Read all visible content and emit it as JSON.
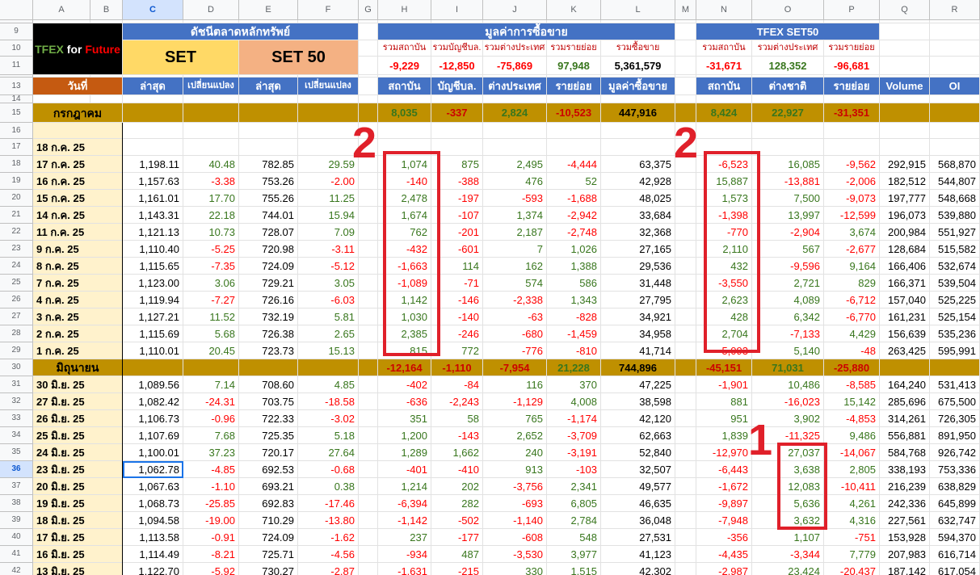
{
  "column_headers": [
    "A",
    "B",
    "C",
    "D",
    "E",
    "F",
    "G",
    "H",
    "I",
    "J",
    "K",
    "L",
    "M",
    "N",
    "O",
    "P",
    "Q",
    "R"
  ],
  "selected_cell": "C36",
  "logo": {
    "text1": "TFEX",
    "text2": " for ",
    "text3": "Future"
  },
  "headers": {
    "set_index": "ดัชนีตลาดหลักทรัพย์",
    "trading_value": "มูลค่าการซื้อขาย",
    "tfex_set50": "TFEX SET50",
    "set": "SET",
    "set50": "SET 50",
    "h10": "รวมสถาบัน",
    "i10": "รวมบัญชีบล.",
    "j10": "รวมต่างประเทศ",
    "k10": "รวมรายย่อย",
    "l10": "รวมซื้อขาย",
    "n10": "รวมสถาบัน",
    "o10": "รวมต่างประเทศ",
    "p10": "รวมรายย่อย",
    "h11": "-9,229",
    "i11": "-12,850",
    "j11": "-75,869",
    "k11": "97,948",
    "l11": "5,361,579",
    "n11": "-31,671",
    "o11": "128,352",
    "p11": "-96,681",
    "date": "วันที่",
    "c13": "ล่าสุด",
    "d13": "เปลี่ยนแปลง",
    "e13": "ล่าสุด",
    "f13": "เปลี่ยนแปลง",
    "h13": "สถาบัน",
    "i13": "บัญชีบล.",
    "j13": "ต่างประเทศ",
    "k13": "รายย่อย",
    "l13": "มูลค่าซื้อขาย",
    "n13": "สถาบัน",
    "o13": "ต่างชาติ",
    "p13": "รายย่อย",
    "q13": "Volume",
    "r13": "OI"
  },
  "month_july": {
    "label": "กรกฎาคม",
    "h": "8,035",
    "i": "-337",
    "j": "2,824",
    "k": "-10,523",
    "l": "447,916",
    "n": "8,424",
    "o": "22,927",
    "p": "-31,351"
  },
  "month_june": {
    "label": "มิถุนายน",
    "h": "-12,164",
    "i": "-1,110",
    "j": "-7,954",
    "k": "21,228",
    "l": "744,896",
    "n": "-45,151",
    "o": "71,031",
    "p": "-25,880"
  },
  "row17_date": "18 ก.ค. 25",
  "rows": [
    {
      "n": "18",
      "date": "17 ก.ค. 25",
      "c": "1,198.11",
      "d": "40.48",
      "e": "782.85",
      "f": "29.59",
      "h": "1,074",
      "i": "875",
      "j": "2,495",
      "k": "-4,444",
      "l": "63,375",
      "N": "-6,523",
      "o": "16,085",
      "p": "-9,562",
      "q": "292,915",
      "r": "568,870"
    },
    {
      "n": "19",
      "date": "16 ก.ค. 25",
      "c": "1,157.63",
      "d": "-3.38",
      "e": "753.26",
      "f": "-2.00",
      "h": "-140",
      "i": "-388",
      "j": "476",
      "k": "52",
      "l": "42,928",
      "N": "15,887",
      "o": "-13,881",
      "p": "-2,006",
      "q": "182,512",
      "r": "544,807"
    },
    {
      "n": "20",
      "date": "15 ก.ค. 25",
      "c": "1,161.01",
      "d": "17.70",
      "e": "755.26",
      "f": "11.25",
      "h": "2,478",
      "i": "-197",
      "j": "-593",
      "k": "-1,688",
      "l": "48,025",
      "N": "1,573",
      "o": "7,500",
      "p": "-9,073",
      "q": "197,777",
      "r": "548,668"
    },
    {
      "n": "21",
      "date": "14 ก.ค. 25",
      "c": "1,143.31",
      "d": "22.18",
      "e": "744.01",
      "f": "15.94",
      "h": "1,674",
      "i": "-107",
      "j": "1,374",
      "k": "-2,942",
      "l": "33,684",
      "N": "-1,398",
      "o": "13,997",
      "p": "-12,599",
      "q": "196,073",
      "r": "539,880"
    },
    {
      "n": "22",
      "date": "11 ก.ค. 25",
      "c": "1,121.13",
      "d": "10.73",
      "e": "728.07",
      "f": "7.09",
      "h": "762",
      "i": "-201",
      "j": "2,187",
      "k": "-2,748",
      "l": "32,368",
      "N": "-770",
      "o": "-2,904",
      "p": "3,674",
      "q": "200,984",
      "r": "551,927"
    },
    {
      "n": "23",
      "date": "9 ก.ค. 25",
      "c": "1,110.40",
      "d": "-5.25",
      "e": "720.98",
      "f": "-3.11",
      "h": "-432",
      "i": "-601",
      "j": "7",
      "k": "1,026",
      "l": "27,165",
      "N": "2,110",
      "o": "567",
      "p": "-2,677",
      "q": "128,684",
      "r": "515,582"
    },
    {
      "n": "24",
      "date": "8 ก.ค. 25",
      "c": "1,115.65",
      "d": "-7.35",
      "e": "724.09",
      "f": "-5.12",
      "h": "-1,663",
      "i": "114",
      "j": "162",
      "k": "1,388",
      "l": "29,536",
      "N": "432",
      "o": "-9,596",
      "p": "9,164",
      "q": "166,406",
      "r": "532,674"
    },
    {
      "n": "25",
      "date": "7 ก.ค. 25",
      "c": "1,123.00",
      "d": "3.06",
      "e": "729.21",
      "f": "3.05",
      "h": "-1,089",
      "i": "-71",
      "j": "574",
      "k": "586",
      "l": "31,448",
      "N": "-3,550",
      "o": "2,721",
      "p": "829",
      "q": "166,371",
      "r": "539,504"
    },
    {
      "n": "26",
      "date": "4 ก.ค. 25",
      "c": "1,119.94",
      "d": "-7.27",
      "e": "726.16",
      "f": "-6.03",
      "h": "1,142",
      "i": "-146",
      "j": "-2,338",
      "k": "1,343",
      "l": "27,795",
      "N": "2,623",
      "o": "4,089",
      "p": "-6,712",
      "q": "157,040",
      "r": "525,225"
    },
    {
      "n": "27",
      "date": "3 ก.ค. 25",
      "c": "1,127.21",
      "d": "11.52",
      "e": "732.19",
      "f": "5.81",
      "h": "1,030",
      "i": "-140",
      "j": "-63",
      "k": "-828",
      "l": "34,921",
      "N": "428",
      "o": "6,342",
      "p": "-6,770",
      "q": "161,231",
      "r": "525,154"
    },
    {
      "n": "28",
      "date": "2 ก.ค. 25",
      "c": "1,115.69",
      "d": "5.68",
      "e": "726.38",
      "f": "2.65",
      "h": "2,385",
      "i": "-246",
      "j": "-680",
      "k": "-1,459",
      "l": "34,958",
      "N": "2,704",
      "o": "-7,133",
      "p": "4,429",
      "q": "156,639",
      "r": "535,236"
    },
    {
      "n": "29",
      "date": "1 ก.ค. 25",
      "c": "1,110.01",
      "d": "20.45",
      "e": "723.73",
      "f": "15.13",
      "h": "815",
      "i": "772",
      "j": "-776",
      "k": "-810",
      "l": "41,714",
      "N": "-5,093",
      "o": "5,140",
      "p": "-48",
      "q": "263,425",
      "r": "595,991"
    }
  ],
  "rows2": [
    {
      "n": "31",
      "date": "30 มิ.ย. 25",
      "c": "1,089.56",
      "d": "7.14",
      "e": "708.60",
      "f": "4.85",
      "h": "-402",
      "i": "-84",
      "j": "116",
      "k": "370",
      "l": "47,225",
      "N": "-1,901",
      "o": "10,486",
      "p": "-8,585",
      "q": "164,240",
      "r": "531,413"
    },
    {
      "n": "32",
      "date": "27 มิ.ย. 25",
      "c": "1,082.42",
      "d": "-24.31",
      "e": "703.75",
      "f": "-18.58",
      "h": "-636",
      "i": "-2,243",
      "j": "-1,129",
      "k": "4,008",
      "l": "38,598",
      "N": "881",
      "o": "-16,023",
      "p": "15,142",
      "q": "285,696",
      "r": "675,500"
    },
    {
      "n": "33",
      "date": "26 มิ.ย. 25",
      "c": "1,106.73",
      "d": "-0.96",
      "e": "722.33",
      "f": "-3.02",
      "h": "351",
      "i": "58",
      "j": "765",
      "k": "-1,174",
      "l": "42,120",
      "N": "951",
      "o": "3,902",
      "p": "-4,853",
      "q": "314,261",
      "r": "726,305"
    },
    {
      "n": "34",
      "date": "25 มิ.ย. 25",
      "c": "1,107.69",
      "d": "7.68",
      "e": "725.35",
      "f": "5.18",
      "h": "1,200",
      "i": "-143",
      "j": "2,652",
      "k": "-3,709",
      "l": "62,663",
      "N": "1,839",
      "o": "-11,325",
      "p": "9,486",
      "q": "556,881",
      "r": "891,950"
    },
    {
      "n": "35",
      "date": "24 มิ.ย. 25",
      "c": "1,100.01",
      "d": "37.23",
      "e": "720.17",
      "f": "27.64",
      "h": "1,289",
      "i": "1,662",
      "j": "240",
      "k": "-3,191",
      "l": "52,840",
      "N": "-12,970",
      "o": "27,037",
      "p": "-14,067",
      "q": "584,768",
      "r": "926,742"
    },
    {
      "n": "36",
      "date": "23 มิ.ย. 25",
      "c": "1,062.78",
      "d": "-4.85",
      "e": "692.53",
      "f": "-0.68",
      "h": "-401",
      "i": "-410",
      "j": "913",
      "k": "-103",
      "l": "32,507",
      "N": "-6,443",
      "o": "3,638",
      "p": "2,805",
      "q": "338,193",
      "r": "753,336"
    },
    {
      "n": "37",
      "date": "20 มิ.ย. 25",
      "c": "1,067.63",
      "d": "-1.10",
      "e": "693.21",
      "f": "0.38",
      "h": "1,214",
      "i": "202",
      "j": "-3,756",
      "k": "2,341",
      "l": "49,577",
      "N": "-1,672",
      "o": "12,083",
      "p": "-10,411",
      "q": "216,239",
      "r": "638,829"
    },
    {
      "n": "38",
      "date": "19 มิ.ย. 25",
      "c": "1,068.73",
      "d": "-25.85",
      "e": "692.83",
      "f": "-17.46",
      "h": "-6,394",
      "i": "282",
      "j": "-693",
      "k": "6,805",
      "l": "46,635",
      "N": "-9,897",
      "o": "5,636",
      "p": "4,261",
      "q": "242,336",
      "r": "645,899"
    },
    {
      "n": "39",
      "date": "18 มิ.ย. 25",
      "c": "1,094.58",
      "d": "-19.00",
      "e": "710.29",
      "f": "-13.80",
      "h": "-1,142",
      "i": "-502",
      "j": "-1,140",
      "k": "2,784",
      "l": "36,048",
      "N": "-7,948",
      "o": "3,632",
      "p": "4,316",
      "q": "227,561",
      "r": "632,747"
    },
    {
      "n": "40",
      "date": "17 มิ.ย. 25",
      "c": "1,113.58",
      "d": "-0.91",
      "e": "724.09",
      "f": "-1.62",
      "h": "237",
      "i": "-177",
      "j": "-608",
      "k": "548",
      "l": "27,531",
      "N": "-356",
      "o": "1,107",
      "p": "-751",
      "q": "153,928",
      "r": "594,370"
    },
    {
      "n": "41",
      "date": "16 มิ.ย. 25",
      "c": "1,114.49",
      "d": "-8.21",
      "e": "725.71",
      "f": "-4.56",
      "h": "-934",
      "i": "487",
      "j": "-3,530",
      "k": "3,977",
      "l": "41,123",
      "N": "-4,435",
      "o": "-3,344",
      "p": "7,779",
      "q": "207,983",
      "r": "616,714"
    },
    {
      "n": "42",
      "date": "13 มิ.ย. 25",
      "c": "1,122.70",
      "d": "-5.92",
      "e": "730.27",
      "f": "-2.87",
      "h": "-1,631",
      "i": "-215",
      "j": "330",
      "k": "1,515",
      "l": "42,302",
      "N": "-2,987",
      "o": "23,424",
      "p": "-20,437",
      "q": "187,142",
      "r": "617,054"
    }
  ],
  "annotations": {
    "a1": "2",
    "a2": "2",
    "a3": "1"
  },
  "colors": {
    "positive": "#38761d",
    "negative": "#ff0000",
    "annotation": "#e0202a",
    "header_blue": "#4472c4",
    "header_gold": "#bf9000",
    "header_orange": "#c55a11"
  }
}
